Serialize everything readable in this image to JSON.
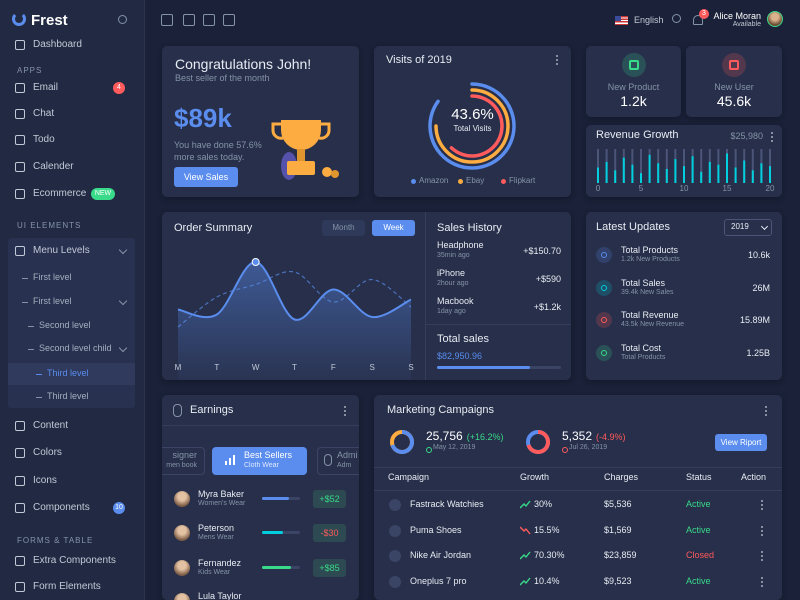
{
  "sidebar": {
    "brand": "Frest",
    "dashboard": "Dashboard",
    "sections": [
      {
        "heading": "APPS",
        "items": [
          {
            "label": "Email",
            "badge": 4,
            "badge_color": "#ff5b5c"
          },
          {
            "label": "Chat"
          },
          {
            "label": "Todo"
          },
          {
            "label": "Calender"
          },
          {
            "label": "Ecommerce",
            "badge": "NEW",
            "badge_color": "#39da8a"
          }
        ]
      },
      {
        "heading": "UI ELEMENTS",
        "items": [
          {
            "label": "Menu Levels",
            "children": [
              {
                "label": "First level"
              },
              {
                "label": "First level",
                "children": [
                  {
                    "label": "Second level"
                  },
                  {
                    "label": "Second level child",
                    "children": [
                      {
                        "label": "Third level"
                      },
                      {
                        "label": "Third level"
                      }
                    ]
                  }
                ]
              }
            ]
          },
          {
            "label": "Content"
          },
          {
            "label": "Colors"
          },
          {
            "label": "Icons"
          },
          {
            "label": "Components",
            "badge": 10,
            "badge_color": "#5a8dee"
          }
        ]
      },
      {
        "heading": "FORMS & TABLE",
        "items": [
          {
            "label": "Extra Components"
          },
          {
            "label": "Form Elements"
          }
        ]
      }
    ]
  },
  "topbar": {
    "language": "English",
    "notifications": 3,
    "user": {
      "name": "Alice Moran",
      "status": "Available"
    }
  },
  "congrats": {
    "title": "Congratulations John!",
    "subtitle": "Best seller of the month",
    "amount": "$89k",
    "text": "You have done 57.6% more sales today.",
    "button": "View Sales"
  },
  "stats": [
    {
      "label": "New Product",
      "value": "1.2k",
      "color": "#39da8a"
    },
    {
      "label": "New User",
      "value": "45.6k",
      "color": "#ff5b5c"
    }
  ],
  "sales_history": {
    "title": "Sales History",
    "items": [
      {
        "name": "Headphone",
        "time": "35min ago",
        "amount": "+$150.70"
      },
      {
        "name": "iPhone",
        "time": "2hour ago",
        "amount": "+$590"
      },
      {
        "name": "Macbook",
        "time": "1day ago",
        "amount": "+$1.2k"
      }
    ],
    "total_label": "Total sales",
    "total": "$82,950.96",
    "progress": 75
  },
  "latest_updates": {
    "title": "Latest Updates",
    "year": "2019",
    "items": [
      {
        "title": "Total Products",
        "subtitle": "1.2k New Products",
        "value": "10.6k",
        "color": "#5a8dee"
      },
      {
        "title": "Total Sales",
        "subtitle": "39.4k New Sales",
        "value": "26M",
        "color": "#00cfdd"
      },
      {
        "title": "Total Revenue",
        "subtitle": "43.5k New Revenue",
        "value": "15.89M",
        "color": "#ff5b5c"
      },
      {
        "title": "Total Cost",
        "subtitle": "Total Products",
        "value": "1.25B",
        "color": "#39da8a"
      }
    ]
  },
  "earnings": {
    "title": "Earnings",
    "tabs": [
      {
        "title": "signer",
        "subtitle": "men book"
      },
      {
        "title": "Best Sellers",
        "subtitle": "Cloth Wear"
      },
      {
        "title": "Admi",
        "subtitle": "Adm"
      }
    ],
    "rows": [
      {
        "name": "Myra Baker",
        "category": "Women's Wear",
        "amount": "+$52",
        "progress": 70,
        "color": "#5a8dee",
        "amount_color": "#39da8a"
      },
      {
        "name": "Peterson",
        "category": "Mens Wear",
        "amount": "-$30",
        "progress": 55,
        "color": "#00cfdd",
        "amount_color": "#ff5b5c"
      },
      {
        "name": "Fernandez",
        "category": "Kids Wear",
        "amount": "+$85",
        "progress": 75,
        "color": "#39da8a",
        "amount_color": "#39da8a"
      },
      {
        "name": "Lula Taylor"
      }
    ]
  },
  "campaigns": {
    "title": "Marketing Campaigns",
    "summaries": [
      {
        "value": "25,756",
        "change": "(+16.2%)",
        "change_color": "#39da8a",
        "date": "May 12, 2019"
      },
      {
        "value": "5,352",
        "change": "(-4.9%)",
        "change_color": "#ff5b5c",
        "date": "Jul 26, 2019"
      }
    ],
    "button": "View Riport",
    "columns": [
      "Campaign",
      "Growth",
      "Charges",
      "Status",
      "Action"
    ],
    "rows": [
      {
        "campaign": "Fastrack Watchies",
        "growth": "30%",
        "trend_color": "#39da8a",
        "charges": "$5,536",
        "status": "Active",
        "status_color": "#39da8a"
      },
      {
        "campaign": "Puma Shoes",
        "growth": "15.5%",
        "trend_color": "#ff5b5c",
        "charges": "$1,569",
        "status": "Active",
        "status_color": "#39da8a"
      },
      {
        "campaign": "Nike Air Jordan",
        "growth": "70.30%",
        "trend_color": "#39da8a",
        "charges": "$23,859",
        "status": "Closed",
        "status_color": "#ff5b5c"
      },
      {
        "campaign": "Oneplus 7 pro",
        "growth": "10.4%",
        "trend_color": "#39da8a",
        "charges": "$9,523",
        "status": "Active",
        "status_color": "#39da8a"
      }
    ]
  },
  "chart_data": [
    {
      "type": "radial-bar",
      "title": "Visits of 2019",
      "center_value": "43.6%",
      "center_label": "Total Visits",
      "series": [
        {
          "name": "Amazon",
          "color": "#5a8dee",
          "values": [
            85
          ]
        },
        {
          "name": "Ebay",
          "color": "#fdac41",
          "values": [
            75
          ]
        },
        {
          "name": "Flipkart",
          "color": "#ff5b5c",
          "values": [
            62
          ]
        }
      ]
    },
    {
      "type": "bar",
      "title": "Revenue Growth",
      "total": "$25,980",
      "color": "#00cfdd",
      "x": [
        0,
        1,
        2,
        3,
        4,
        5,
        6,
        7,
        8,
        9,
        10,
        11,
        12,
        13,
        14,
        15,
        16,
        17,
        18,
        19,
        20
      ],
      "values": [
        22,
        30,
        18,
        36,
        26,
        14,
        40,
        28,
        20,
        34,
        24,
        38,
        16,
        30,
        26,
        42,
        22,
        32,
        18,
        28,
        24
      ],
      "xlim": [
        0,
        20
      ],
      "xticks": [
        0,
        5,
        10,
        15,
        20
      ]
    },
    {
      "type": "line",
      "title": "Order Summary",
      "tabs": [
        "Month",
        "Week"
      ],
      "categories": [
        "M",
        "T",
        "W",
        "T",
        "F",
        "S",
        "S"
      ],
      "series": [
        {
          "color": "#5a8dee",
          "values": [
            42,
            38,
            80,
            34,
            58,
            36,
            50
          ]
        },
        {
          "color": "#5a8dee",
          "dashed": true,
          "values": [
            28,
            52,
            62,
            72,
            48,
            66,
            44
          ]
        }
      ]
    }
  ]
}
